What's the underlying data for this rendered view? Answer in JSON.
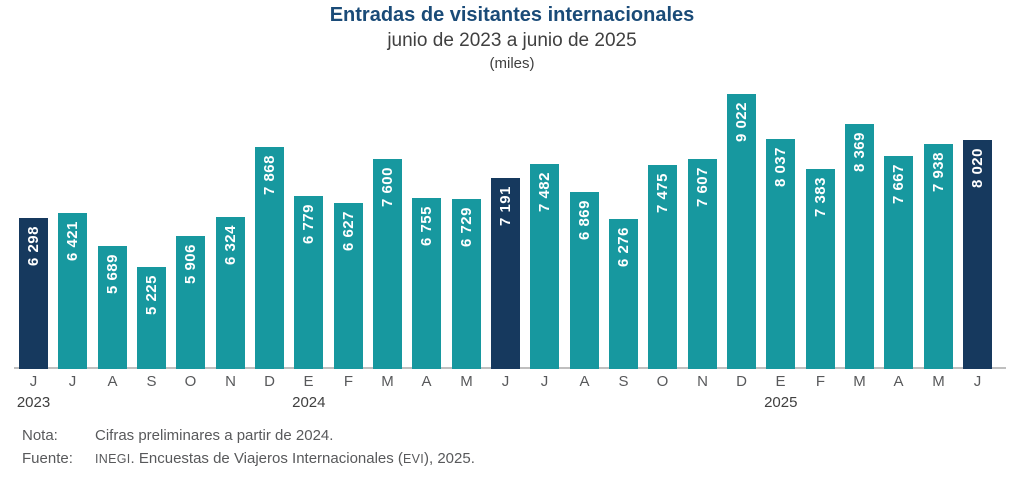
{
  "header": {
    "title": "Entradas de visitantes internacionales",
    "subtitle": "junio de 2023 a junio de 2025",
    "units": "(miles)"
  },
  "chart_data": {
    "type": "bar",
    "title": "Entradas de visitantes internacionales",
    "subtitle": "junio de 2023 a junio de 2025",
    "units_label": "(miles)",
    "categories": [
      "J",
      "J",
      "A",
      "S",
      "O",
      "N",
      "D",
      "E",
      "F",
      "M",
      "A",
      "M",
      "J",
      "J",
      "A",
      "S",
      "O",
      "N",
      "D",
      "E",
      "F",
      "M",
      "A",
      "M",
      "J"
    ],
    "values": [
      6298,
      6421,
      5689,
      5225,
      5906,
      6324,
      7868,
      6779,
      6627,
      7600,
      6755,
      6729,
      7191,
      7482,
      6869,
      6276,
      7475,
      7607,
      9022,
      8037,
      7383,
      8369,
      7667,
      7938,
      8020
    ],
    "labels": [
      "6 298",
      "6 421",
      "5 689",
      "5 225",
      "5 906",
      "6 324",
      "7 868",
      "6 779",
      "6 627",
      "7 600",
      "6 755",
      "6 729",
      "7 191",
      "7 482",
      "6 869",
      "6 276",
      "7 475",
      "7 607",
      "9 022",
      "8 037",
      "7 383",
      "8 369",
      "7 667",
      "7 938",
      "8 020"
    ],
    "highlight_indexes": [
      0,
      12,
      24
    ],
    "years": [
      {
        "label": "2023",
        "bar_index": 0
      },
      {
        "label": "2024",
        "bar_index": 7
      },
      {
        "label": "2025",
        "bar_index": 19
      }
    ],
    "bar_color": "#17989F",
    "highlight_color": "#16395E",
    "value_label_color": "#FFFFFF",
    "axis_line_color": "#BFBFBF",
    "baseline_value": 3000,
    "max_value": 9022,
    "grid": false,
    "legend": false,
    "xlabel": "",
    "ylabel": ""
  },
  "notes": {
    "nota_label": "Nota:",
    "nota_text": "Cifras preliminares a partir de 2024.",
    "fuente_label": "Fuente:",
    "fuente_org": "INEGI",
    "fuente_middle": ". Encuestas de Viajeros Internacionales (",
    "fuente_abbr": "EVI",
    "fuente_end": "), 2025."
  }
}
